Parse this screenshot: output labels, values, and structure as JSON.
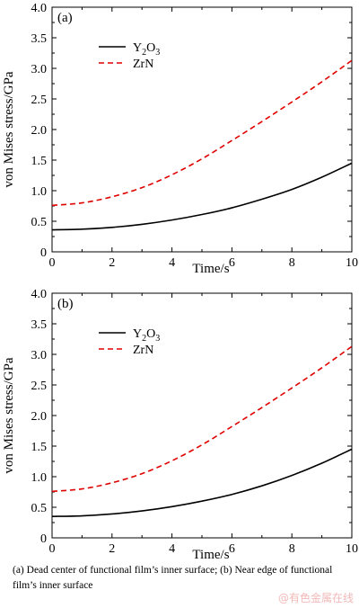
{
  "chart_data": [
    {
      "type": "line",
      "panel_label": "(a)",
      "xlabel": "Time/s",
      "ylabel": "von Mises stress/GPa",
      "xlim": [
        0,
        10
      ],
      "ylim": [
        0,
        4.0
      ],
      "x_ticks": [
        "0",
        "2",
        "4",
        "6",
        "8",
        "10"
      ],
      "y_ticks": [
        "0",
        "0.5",
        "1.0",
        "1.5",
        "2.0",
        "2.5",
        "3.0",
        "3.5",
        "4.0"
      ],
      "legend_position": "upper-left",
      "series": [
        {
          "name": "Y2O3",
          "name_main": "Y",
          "name_sub1": "2",
          "name_mid": "O",
          "name_sub2": "3",
          "style": "solid",
          "color": "#000000",
          "x": [
            0,
            1,
            2,
            3,
            4,
            5,
            6,
            7,
            8,
            9,
            10
          ],
          "y": [
            0.36,
            0.37,
            0.4,
            0.45,
            0.52,
            0.61,
            0.72,
            0.86,
            1.02,
            1.22,
            1.45
          ]
        },
        {
          "name": "ZrN",
          "style": "dashed",
          "color": "#e00000",
          "x": [
            0,
            1,
            2,
            3,
            4,
            5,
            6,
            7,
            8,
            9,
            10
          ],
          "y": [
            0.76,
            0.8,
            0.9,
            1.05,
            1.26,
            1.52,
            1.82,
            2.13,
            2.45,
            2.78,
            3.13
          ]
        }
      ]
    },
    {
      "type": "line",
      "panel_label": "(b)",
      "xlabel": "Time/s",
      "ylabel": "von Mises stress/GPa",
      "xlim": [
        0,
        10
      ],
      "ylim": [
        0,
        4.0
      ],
      "x_ticks": [
        "0",
        "2",
        "4",
        "6",
        "8",
        "10"
      ],
      "y_ticks": [
        "0",
        "0.5",
        "1.0",
        "1.5",
        "2.0",
        "2.5",
        "3.0",
        "3.5",
        "4.0"
      ],
      "legend_position": "upper-left",
      "series": [
        {
          "name": "Y2O3",
          "name_main": "Y",
          "name_sub1": "2",
          "name_mid": "O",
          "name_sub2": "3",
          "style": "solid",
          "color": "#000000",
          "x": [
            0,
            1,
            2,
            3,
            4,
            5,
            6,
            7,
            8,
            9,
            10
          ],
          "y": [
            0.35,
            0.36,
            0.39,
            0.44,
            0.51,
            0.6,
            0.71,
            0.85,
            1.02,
            1.22,
            1.45
          ]
        },
        {
          "name": "ZrN",
          "style": "dashed",
          "color": "#e00000",
          "x": [
            0,
            1,
            2,
            3,
            4,
            5,
            6,
            7,
            8,
            9,
            10
          ],
          "y": [
            0.76,
            0.8,
            0.9,
            1.05,
            1.26,
            1.52,
            1.82,
            2.13,
            2.45,
            2.78,
            3.13
          ]
        }
      ]
    }
  ],
  "caption": "(a) Dead center of functional film’s inner surface; (b) Near edge of functional film’s inner surface",
  "watermark": "@有色金属在线"
}
